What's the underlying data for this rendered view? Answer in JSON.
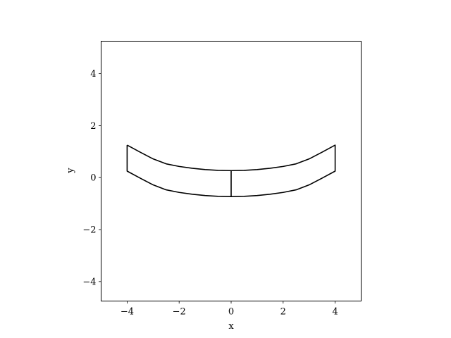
{
  "chart_data": {
    "type": "line",
    "xlabel": "x",
    "ylabel": "y",
    "xlim": [
      -5,
      5
    ],
    "ylim": [
      -4.75,
      5.25
    ],
    "xticks": [
      -4,
      -2,
      0,
      2,
      4
    ],
    "xtick_labels": [
      "−4",
      "−2",
      "0",
      "2",
      "4"
    ],
    "yticks": [
      -4,
      -2,
      0,
      2,
      4
    ],
    "ytick_labels": [
      "−4",
      "−2",
      "0",
      "2",
      "4"
    ],
    "grid": false,
    "line_color": "#000000",
    "series": [
      {
        "values_xy": [
          [
            -4.0,
            1.25
          ],
          [
            -3.5,
            0.98
          ],
          [
            -3.0,
            0.72
          ],
          [
            -2.5,
            0.53
          ],
          [
            -2.0,
            0.43
          ],
          [
            -1.5,
            0.36
          ],
          [
            -1.0,
            0.31
          ],
          [
            -0.5,
            0.28
          ],
          [
            0.0,
            0.27
          ],
          [
            0.5,
            0.28
          ],
          [
            1.0,
            0.31
          ],
          [
            1.5,
            0.36
          ],
          [
            2.0,
            0.43
          ],
          [
            2.5,
            0.53
          ],
          [
            3.0,
            0.72
          ],
          [
            3.5,
            0.98
          ],
          [
            4.0,
            1.25
          ],
          [
            4.0,
            0.25
          ],
          [
            3.5,
            -0.02
          ],
          [
            3.0,
            -0.28
          ],
          [
            2.5,
            -0.47
          ],
          [
            2.0,
            -0.57
          ],
          [
            1.5,
            -0.64
          ],
          [
            1.0,
            -0.69
          ],
          [
            0.5,
            -0.72
          ],
          [
            0.0,
            -0.73
          ],
          [
            -0.5,
            -0.72
          ],
          [
            -1.0,
            -0.69
          ],
          [
            -1.5,
            -0.64
          ],
          [
            -2.0,
            -0.57
          ],
          [
            -2.5,
            -0.47
          ],
          [
            -3.0,
            -0.28
          ],
          [
            -3.5,
            -0.02
          ],
          [
            -4.0,
            0.25
          ],
          [
            -4.0,
            1.25
          ]
        ]
      },
      {
        "values_xy": [
          [
            0.0,
            0.27
          ],
          [
            0.0,
            -0.73
          ]
        ]
      }
    ]
  }
}
